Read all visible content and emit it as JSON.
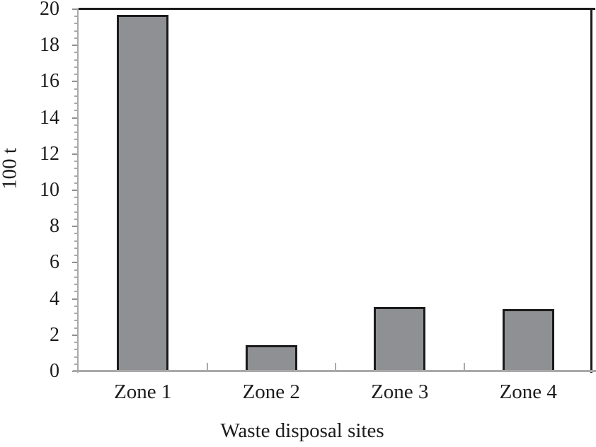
{
  "chart_data": {
    "type": "bar",
    "title": "",
    "xlabel": "Waste disposal sites",
    "ylabel": "100 t",
    "categories": [
      "Zone 1",
      "Zone 2",
      "Zone 3",
      "Zone 4"
    ],
    "values": [
      19.7,
      1.45,
      3.55,
      3.45
    ],
    "ylim": [
      0,
      20
    ],
    "y_major_step": 2,
    "y_minor_step": 0.4,
    "y_tick_labels": [
      "0",
      "2",
      "4",
      "6",
      "8",
      "10",
      "12",
      "14",
      "16",
      "18",
      "20"
    ],
    "grid": false,
    "legend": false,
    "bar_fill": "#8e9093",
    "bar_stroke": "#1b1b1b",
    "axis_color": "#a9a9a9",
    "major_tick_color": "#8f8f8f",
    "frame_color": "#1b1b1b",
    "text_color": "#1c1c1c"
  }
}
